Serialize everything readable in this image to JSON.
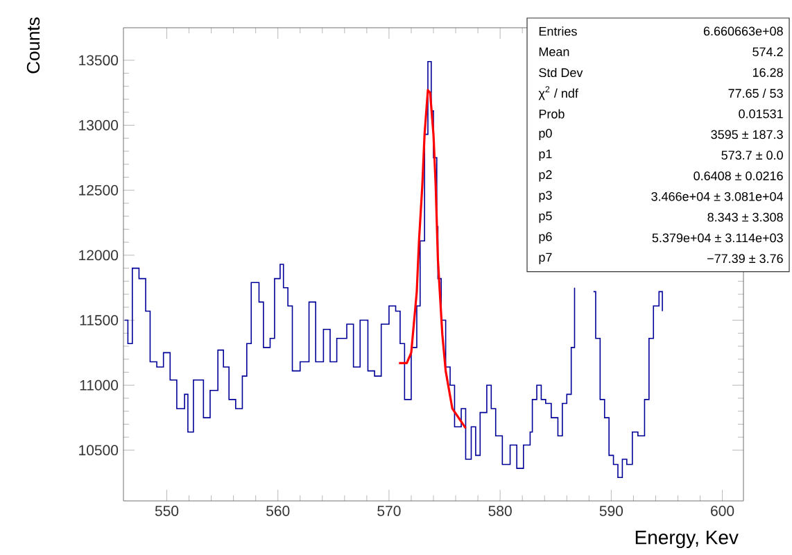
{
  "chart_data": {
    "type": "step",
    "xlabel": "Energy, Kev",
    "ylabel": "Counts",
    "xlim": [
      546.1,
      601.9
    ],
    "ylim": [
      10110,
      13750
    ],
    "xticks": [
      550,
      560,
      570,
      580,
      590,
      600
    ],
    "yticks": [
      10500,
      11000,
      11500,
      12000,
      12500,
      13000,
      13500
    ],
    "grid": false,
    "series": [
      {
        "color": "#000099",
        "x": [
          546.2,
          546.5,
          546.9,
          547.5,
          548.1,
          548.5,
          549.1,
          549.7,
          550.3,
          550.9,
          551.6,
          551.9,
          552.4,
          553.3,
          553.9,
          554.6,
          555.1,
          555.6,
          556.2,
          556.8,
          557.2,
          557.6,
          558.3,
          558.7,
          559.3,
          559.7,
          560.2,
          560.5,
          560.9,
          561.3,
          562.0,
          562.8,
          563.4,
          564.1,
          564.7,
          565.3,
          566.2,
          566.8,
          567.4,
          568.1,
          568.7,
          569.3,
          570.0,
          570.6,
          571.0,
          571.4,
          572.0,
          572.5,
          572.8,
          573.2,
          573.5,
          573.8,
          574.0,
          574.3,
          574.4,
          574.7,
          575.1,
          575.5,
          575.9,
          576.5,
          576.9,
          577.4,
          577.8,
          578.2,
          578.8,
          579.2,
          579.6,
          580.2,
          580.9,
          581.5,
          582.1,
          582.7,
          582.9,
          583.3,
          583.7,
          584.1,
          584.6,
          585.2,
          585.6,
          586.0,
          586.4,
          586.7,
          587.5,
          588.4,
          588.6,
          589.0,
          589.4,
          589.8,
          590.2,
          590.6,
          591.0,
          591.4,
          591.9,
          592.4,
          593.0,
          593.4,
          593.8,
          594.3,
          594.6
        ],
        "values": [
          11500,
          11320,
          11900,
          11820,
          11570,
          11180,
          11140,
          11250,
          11040,
          10820,
          10930,
          10640,
          11040,
          10750,
          10960,
          11270,
          11140,
          10890,
          10820,
          11070,
          11320,
          11790,
          11640,
          11290,
          11360,
          11820,
          11930,
          11750,
          11610,
          11110,
          11180,
          11640,
          11180,
          11430,
          11180,
          11360,
          11470,
          11140,
          11500,
          11110,
          11070,
          11470,
          11610,
          11570,
          11320,
          10890,
          11290,
          11610,
          12110,
          12930,
          13490,
          13110,
          12750,
          12220,
          11820,
          11500,
          11140,
          11000,
          10680,
          10820,
          10430,
          10680,
          10460,
          10790,
          11000,
          10820,
          10610,
          10390,
          10540,
          10360,
          10540,
          10640,
          10890,
          11000,
          10890,
          10860,
          10750,
          10610,
          10860,
          10930,
          11290,
          11750,
          null,
          11720,
          11360,
          10890,
          10750,
          10460,
          10390,
          10290,
          10430,
          10390,
          10640,
          10610,
          10890,
          11360,
          11610,
          11720,
          11570
        ]
      },
      {
        "type": "line",
        "color": "#ff0000",
        "x": [
          570.9,
          571.6,
          572.0,
          572.5,
          572.7,
          573.0,
          573.2,
          573.5,
          573.7,
          574.0,
          574.2,
          574.4,
          574.5,
          574.8,
          575.1,
          575.7,
          576.9
        ],
        "values": [
          11170,
          11170,
          11250,
          11720,
          12110,
          12540,
          12930,
          13270,
          13250,
          12930,
          12540,
          11970,
          11820,
          11390,
          11110,
          10820,
          10670
        ]
      }
    ],
    "annotations": [
      "Entries",
      "6.660663e+08",
      "Mean",
      "574.2",
      "Std Dev",
      "16.28",
      "χ$^{2}$ / ndf",
      "77.65 / 53",
      "Prob",
      "0.01531",
      "p0",
      "3595 ± 187.3",
      "p1",
      "573.7 ± 0.0",
      "p2",
      "0.6408 ± 0.0216",
      "p3",
      "3.466e+04 ± 3.081e+04",
      "p5",
      "8.343 ± 3.308",
      "p6",
      "5.379e+04 ± 3.114e+03",
      "p7",
      "−77.39 ± 3.76"
    ]
  }
}
